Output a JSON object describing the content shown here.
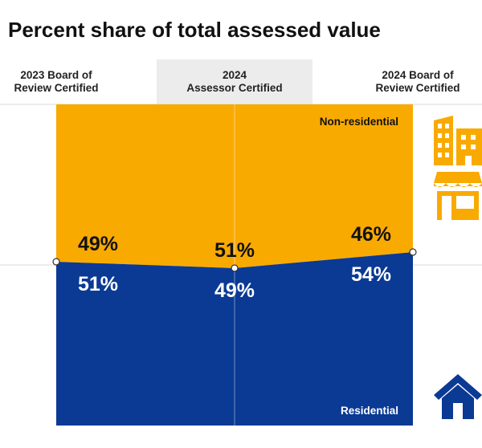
{
  "title": "Percent share of total assessed value",
  "columns": [
    {
      "line1": "2023 Board of",
      "line2": "Review Certified"
    },
    {
      "line1": "2024",
      "line2": "Assessor Certified"
    },
    {
      "line1": "2024 Board of",
      "line2": "Review Certified"
    }
  ],
  "chart_data": {
    "type": "area",
    "categories": [
      "2023 Board of Review Certified",
      "2024 Assessor Certified",
      "2024 Board of Review Certified"
    ],
    "series": [
      {
        "name": "Non-residential",
        "values": [
          49,
          51,
          46
        ],
        "labels": [
          "49%",
          "51%",
          "46%"
        ],
        "color": "#F9AA00"
      },
      {
        "name": "Residential",
        "values": [
          51,
          49,
          54
        ],
        "labels": [
          "51%",
          "49%",
          "54%"
        ],
        "color": "#0A3A94"
      }
    ],
    "ylim": [
      0,
      100
    ],
    "stacked": true,
    "label_color": "#ffffff",
    "value_label_colors": {
      "Non-residential": "#111111",
      "Residential": "#ffffff"
    }
  },
  "icons": {
    "non_residential": [
      "office-building-icon",
      "storefront-icon"
    ],
    "residential": [
      "house-icon"
    ],
    "color_non_residential": "#F9AA00",
    "color_residential": "#0A3A94"
  }
}
